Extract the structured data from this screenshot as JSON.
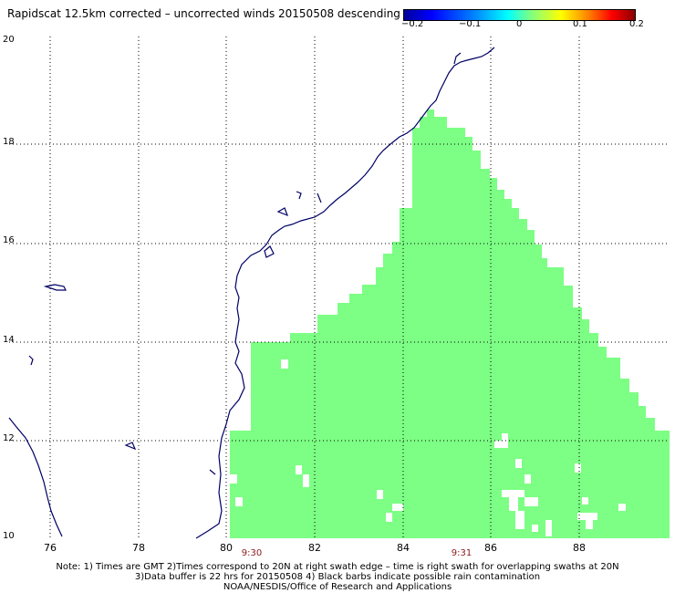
{
  "title": "Rapidscat 12.5km corrected – uncorrected winds 20150508 descending",
  "colorbar": {
    "ticks": [
      "−0.2",
      "−0.1",
      "0",
      "0.1",
      "0.2"
    ]
  },
  "axes": {
    "y_labels": [
      "20",
      "18",
      "16",
      "14",
      "12",
      "10"
    ],
    "x_labels": [
      "76",
      "78",
      "80",
      "82",
      "84",
      "86",
      "88"
    ],
    "time_labels": [
      "9:30",
      "9:31"
    ]
  },
  "swath_color": "#7cff84",
  "notes": [
    "Note: 1) Times are GMT 2)Times correspond to 20N at right swath edge – time is right swath for overlapping swaths at 20N",
    "3)Data buffer is 22 hrs for 20150508 4) Black barbs indicate possible rain contamination",
    "NOAA/NESDIS/Office of Research and Applications"
  ]
}
